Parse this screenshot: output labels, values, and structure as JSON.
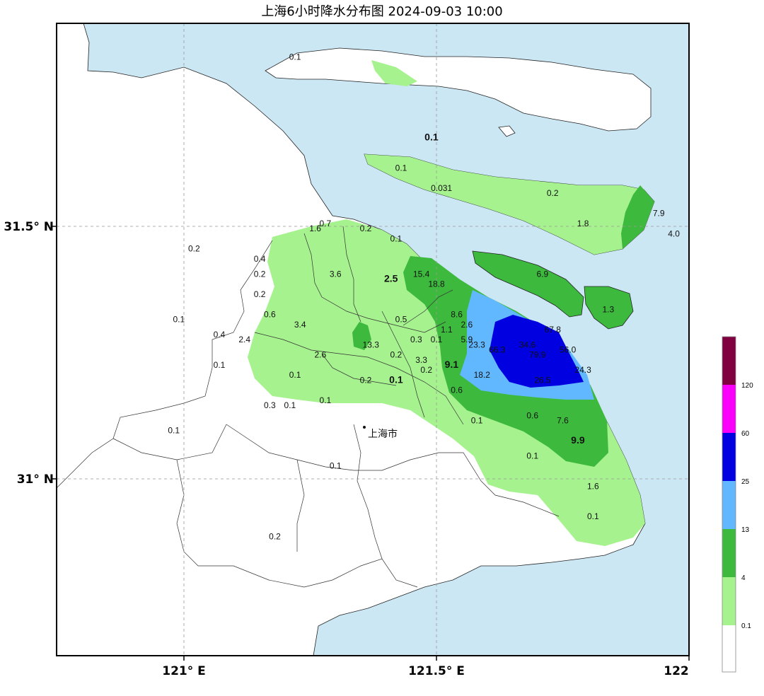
{
  "title": "上海6小时降水分布图 2024-09-03 10:00",
  "colors": {
    "water": "#cce7f4",
    "land": "#ffffff",
    "c_0_1": "#a6f28f",
    "c_4": "#3dba3d",
    "c_13": "#61b8ff",
    "c_25": "#0000e1",
    "c_60": "#fa00fa",
    "c_120": "#800040"
  },
  "axes": {
    "x_ticks": [
      "121° E",
      "121.5° E",
      "122"
    ],
    "y_ticks": [
      "31.5° N",
      "31° N"
    ]
  },
  "city_label": "上海市",
  "colorbar": {
    "labels": [
      "0.1",
      "4",
      "13",
      "25",
      "60",
      "120"
    ]
  },
  "stations": [
    {
      "v": "0.1",
      "lon": 121.22,
      "lat": 31.83
    },
    {
      "v": "0.1",
      "lon": 121.49,
      "lat": 31.67,
      "bold": true
    },
    {
      "v": "0.1",
      "lon": 121.43,
      "lat": 31.61
    },
    {
      "v": "0.031",
      "lon": 121.51,
      "lat": 31.57
    },
    {
      "v": "0.2",
      "lon": 121.73,
      "lat": 31.56
    },
    {
      "v": "1.8",
      "lon": 121.79,
      "lat": 31.5
    },
    {
      "v": "7.9",
      "lon": 121.94,
      "lat": 31.52
    },
    {
      "v": "4.0",
      "lon": 121.97,
      "lat": 31.48
    },
    {
      "v": "1.6",
      "lon": 121.26,
      "lat": 31.49
    },
    {
      "v": "0.7",
      "lon": 121.28,
      "lat": 31.5
    },
    {
      "v": "0.2",
      "lon": 121.36,
      "lat": 31.49
    },
    {
      "v": "0.1",
      "lon": 121.42,
      "lat": 31.47
    },
    {
      "v": "0.2",
      "lon": 121.02,
      "lat": 31.45
    },
    {
      "v": "0.4",
      "lon": 121.15,
      "lat": 31.43
    },
    {
      "v": "0.2",
      "lon": 121.15,
      "lat": 31.4
    },
    {
      "v": "3.6",
      "lon": 121.3,
      "lat": 31.4
    },
    {
      "v": "2.5",
      "lon": 121.41,
      "lat": 31.39,
      "bold": true
    },
    {
      "v": "15.4",
      "lon": 121.47,
      "lat": 31.4
    },
    {
      "v": "18.8",
      "lon": 121.5,
      "lat": 31.38
    },
    {
      "v": "6.9",
      "lon": 121.71,
      "lat": 31.4
    },
    {
      "v": "0.2",
      "lon": 121.15,
      "lat": 31.36
    },
    {
      "v": "1.3",
      "lon": 121.84,
      "lat": 31.33
    },
    {
      "v": "0.6",
      "lon": 121.17,
      "lat": 31.32
    },
    {
      "v": "8.6",
      "lon": 121.54,
      "lat": 31.32
    },
    {
      "v": "0.5",
      "lon": 121.43,
      "lat": 31.31
    },
    {
      "v": "0.1",
      "lon": 120.99,
      "lat": 31.31
    },
    {
      "v": "3.4",
      "lon": 121.23,
      "lat": 31.3
    },
    {
      "v": "1.1",
      "lon": 121.52,
      "lat": 31.29
    },
    {
      "v": "2.6",
      "lon": 121.56,
      "lat": 31.3
    },
    {
      "v": "67.8",
      "lon": 121.73,
      "lat": 31.29
    },
    {
      "v": "5.9",
      "lon": 121.56,
      "lat": 31.27
    },
    {
      "v": "0.4",
      "lon": 121.07,
      "lat": 31.28
    },
    {
      "v": "2.4",
      "lon": 121.12,
      "lat": 31.27
    },
    {
      "v": "0.3",
      "lon": 121.46,
      "lat": 31.27
    },
    {
      "v": "0.1",
      "lon": 121.5,
      "lat": 31.27
    },
    {
      "v": "23.3",
      "lon": 121.58,
      "lat": 31.26
    },
    {
      "v": "34.6",
      "lon": 121.68,
      "lat": 31.26
    },
    {
      "v": "13.3",
      "lon": 121.37,
      "lat": 31.26
    },
    {
      "v": "66.3",
      "lon": 121.62,
      "lat": 31.25
    },
    {
      "v": "56.0",
      "lon": 121.76,
      "lat": 31.25
    },
    {
      "v": "2.6",
      "lon": 121.27,
      "lat": 31.24
    },
    {
      "v": "0.2",
      "lon": 121.42,
      "lat": 31.24
    },
    {
      "v": "3.3",
      "lon": 121.47,
      "lat": 31.23
    },
    {
      "v": "79.9",
      "lon": 121.7,
      "lat": 31.24
    },
    {
      "v": "0.1",
      "lon": 121.07,
      "lat": 31.22
    },
    {
      "v": "9.1",
      "lon": 121.53,
      "lat": 31.22,
      "bold": true
    },
    {
      "v": "0.2",
      "lon": 121.48,
      "lat": 31.21
    },
    {
      "v": "18.2",
      "lon": 121.59,
      "lat": 31.2
    },
    {
      "v": "24.3",
      "lon": 121.79,
      "lat": 31.21
    },
    {
      "v": "0.1",
      "lon": 121.22,
      "lat": 31.2
    },
    {
      "v": "0.2",
      "lon": 121.36,
      "lat": 31.19
    },
    {
      "v": "0.1",
      "lon": 121.42,
      "lat": 31.19,
      "bold": true
    },
    {
      "v": "26.5",
      "lon": 121.71,
      "lat": 31.19
    },
    {
      "v": "0.6",
      "lon": 121.54,
      "lat": 31.17
    },
    {
      "v": "0.3",
      "lon": 121.17,
      "lat": 31.14
    },
    {
      "v": "0.1",
      "lon": 121.21,
      "lat": 31.14
    },
    {
      "v": "0.1",
      "lon": 121.28,
      "lat": 31.15
    },
    {
      "v": "0.6",
      "lon": 121.69,
      "lat": 31.12
    },
    {
      "v": "7.6",
      "lon": 121.75,
      "lat": 31.11
    },
    {
      "v": "0.1",
      "lon": 121.58,
      "lat": 31.11
    },
    {
      "v": "0.1",
      "lon": 120.98,
      "lat": 31.09
    },
    {
      "v": "9.9",
      "lon": 121.78,
      "lat": 31.07,
      "bold": true
    },
    {
      "v": "0.1",
      "lon": 121.69,
      "lat": 31.04
    },
    {
      "v": "0.1",
      "lon": 121.3,
      "lat": 31.02
    },
    {
      "v": "1.6",
      "lon": 121.81,
      "lat": 30.98
    },
    {
      "v": "0.1",
      "lon": 121.81,
      "lat": 30.92
    },
    {
      "v": "0.2",
      "lon": 121.18,
      "lat": 30.88
    }
  ]
}
